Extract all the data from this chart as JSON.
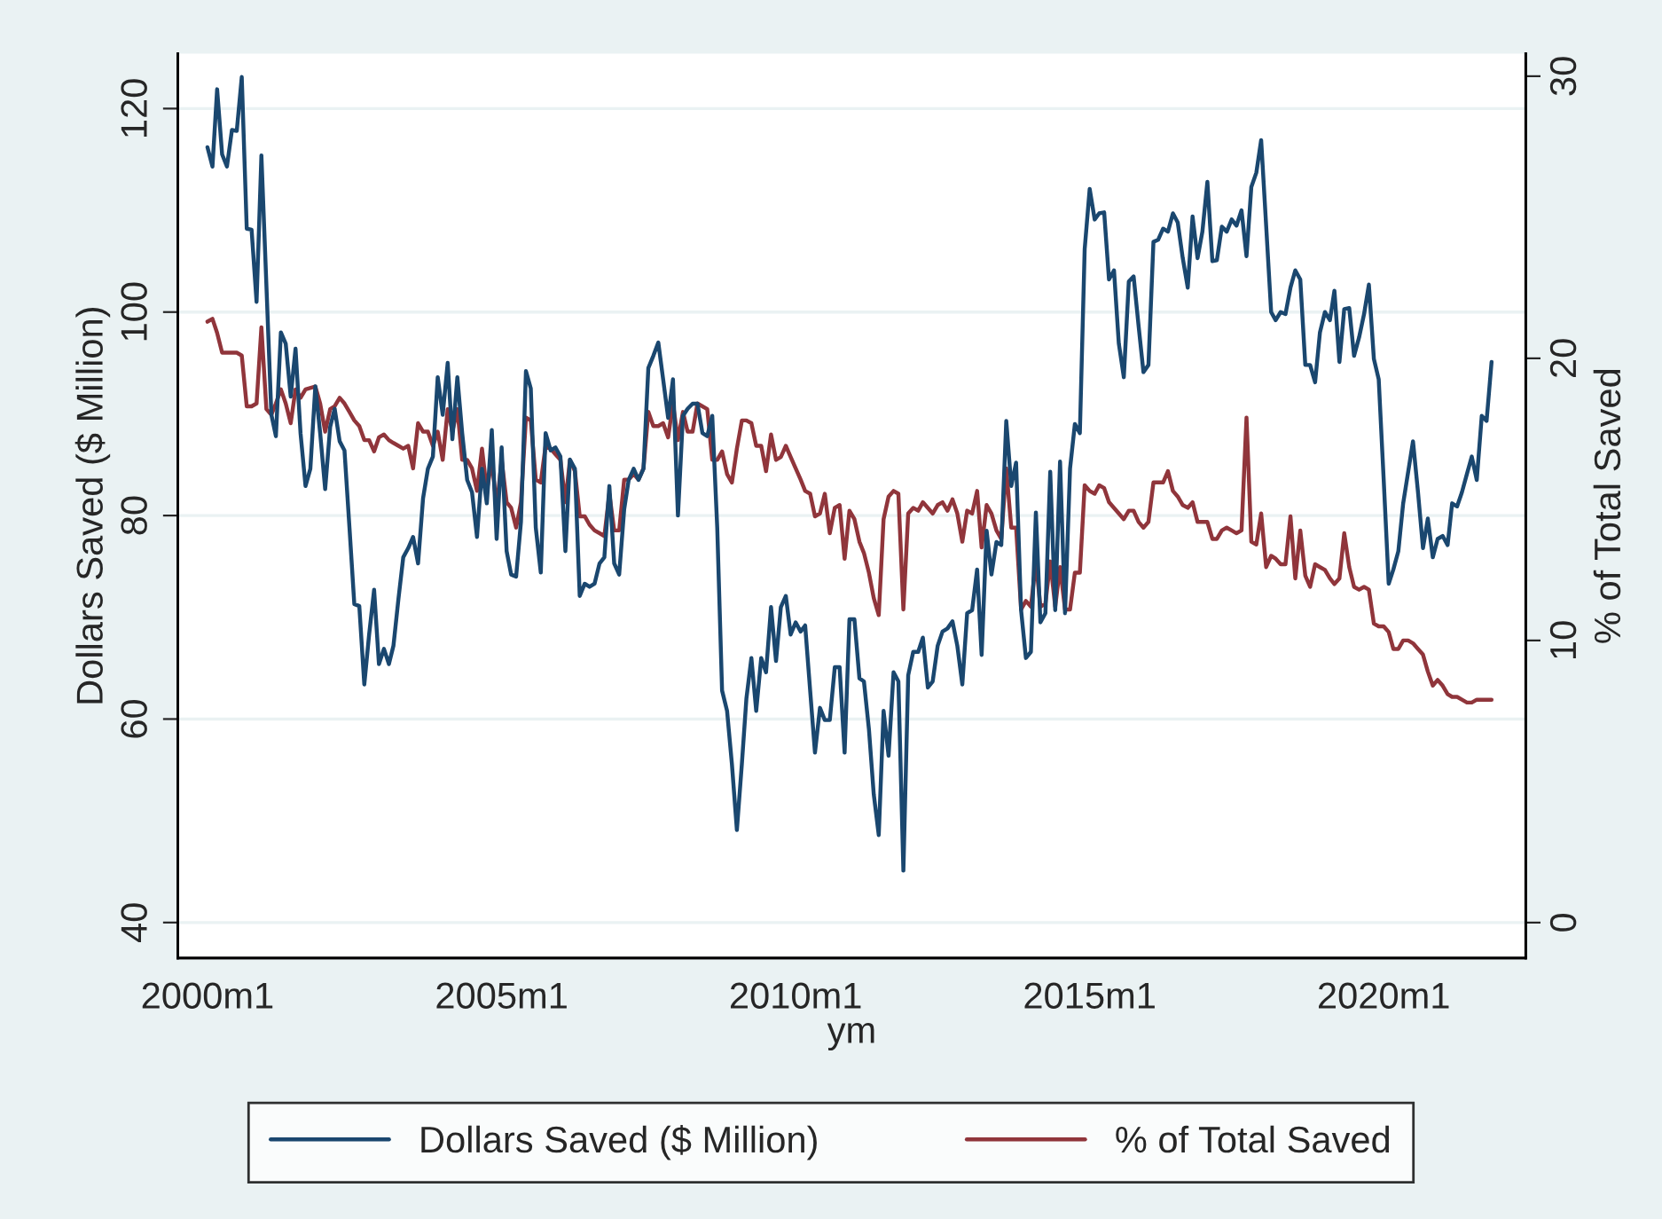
{
  "chart_data": {
    "type": "line",
    "xlabel": "ym",
    "ylabel": "Dollars Saved ($ Million)",
    "y2label": "% of Total Saved",
    "xlim": [
      "1999-07",
      "2022-06"
    ],
    "xticks": [
      {
        "value": "2000-01",
        "label": "2000m1"
      },
      {
        "value": "2005-01",
        "label": "2005m1"
      },
      {
        "value": "2010-01",
        "label": "2010m1"
      },
      {
        "value": "2015-01",
        "label": "2015m1"
      },
      {
        "value": "2020-01",
        "label": "2020m1"
      }
    ],
    "ylim": [
      36.5,
      125.4
    ],
    "yticks": [
      40,
      60,
      80,
      100,
      120
    ],
    "y2lim": [
      -1.26,
      30.8
    ],
    "y2ticks": [
      0,
      10,
      20,
      30
    ],
    "grid": "y",
    "legend": "bottom",
    "line_style": "solid",
    "marker": "none",
    "series": [
      {
        "name": "Dollars Saved ($ Million)",
        "color": "#1a476f",
        "x": [
          "2000-01",
          "2000-02",
          "2000-03",
          "2000-04",
          "2000-05",
          "2000-06",
          "2000-07",
          "2000-08",
          "2000-09",
          "2000-10",
          "2000-11",
          "2000-12",
          "2001-02",
          "2001-03",
          "2001-04",
          "2001-05",
          "2001-06",
          "2001-07",
          "2001-08",
          "2001-09",
          "2001-10",
          "2001-11",
          "2001-12",
          "2002-01",
          "2002-02",
          "2002-03",
          "2002-04",
          "2002-05",
          "2002-06",
          "2002-07",
          "2002-08",
          "2002-09",
          "2002-10",
          "2002-11",
          "2002-12",
          "2003-01",
          "2003-02",
          "2003-03",
          "2003-04",
          "2003-05",
          "2003-06",
          "2003-07",
          "2003-08",
          "2003-09",
          "2003-10",
          "2003-11",
          "2003-12",
          "2004-01",
          "2004-02",
          "2004-03",
          "2004-04",
          "2004-05",
          "2004-06",
          "2004-07",
          "2004-08",
          "2004-09",
          "2004-10",
          "2004-11",
          "2004-12",
          "2005-01",
          "2005-02",
          "2005-03",
          "2005-04",
          "2005-05",
          "2005-06",
          "2005-07",
          "2005-08",
          "2005-09",
          "2005-10",
          "2005-11",
          "2005-12",
          "2006-01",
          "2006-02",
          "2006-03",
          "2006-04",
          "2006-05",
          "2006-06",
          "2006-07",
          "2006-08",
          "2006-09",
          "2006-10",
          "2006-11",
          "2006-12",
          "2007-01",
          "2007-02",
          "2007-03",
          "2007-04",
          "2007-05",
          "2007-06",
          "2007-07",
          "2007-08",
          "2007-09",
          "2007-10",
          "2007-11",
          "2007-12",
          "2008-01",
          "2008-02",
          "2008-03",
          "2008-04",
          "2008-05",
          "2008-06",
          "2008-07",
          "2008-08",
          "2008-09",
          "2008-10",
          "2008-11",
          "2008-12",
          "2009-01",
          "2009-02",
          "2009-03",
          "2009-04",
          "2009-05",
          "2009-06",
          "2009-07",
          "2009-08",
          "2009-09",
          "2009-10",
          "2009-11",
          "2009-12",
          "2010-01",
          "2010-02",
          "2010-03",
          "2010-04",
          "2010-05",
          "2010-06",
          "2010-07",
          "2010-08",
          "2010-09",
          "2010-10",
          "2010-11",
          "2010-12",
          "2011-01",
          "2011-02",
          "2011-03",
          "2011-04",
          "2011-05",
          "2011-06",
          "2011-07",
          "2011-08",
          "2011-09",
          "2011-10",
          "2011-11",
          "2011-12",
          "2012-01",
          "2012-02",
          "2012-03",
          "2012-04",
          "2012-05",
          "2012-06",
          "2012-07",
          "2012-08",
          "2012-09",
          "2012-10",
          "2012-11",
          "2012-12",
          "2013-01",
          "2013-02",
          "2013-03",
          "2013-04",
          "2013-05",
          "2013-06",
          "2013-07",
          "2013-08",
          "2013-09",
          "2013-10",
          "2013-11",
          "2013-12",
          "2014-01",
          "2014-02",
          "2014-03",
          "2014-04",
          "2014-05",
          "2014-06",
          "2014-07",
          "2014-08",
          "2014-09",
          "2014-10",
          "2014-11",
          "2014-12",
          "2015-01",
          "2015-02",
          "2015-03",
          "2015-04",
          "2015-05",
          "2015-06",
          "2015-07",
          "2015-08",
          "2015-09",
          "2015-10",
          "2015-11",
          "2015-12",
          "2016-01",
          "2016-02",
          "2016-03",
          "2016-04",
          "2016-05",
          "2016-06",
          "2016-07",
          "2016-08",
          "2016-09",
          "2016-10",
          "2016-11",
          "2016-12",
          "2017-01",
          "2017-02",
          "2017-03",
          "2017-04",
          "2017-05",
          "2017-06",
          "2017-07",
          "2017-08",
          "2017-09",
          "2017-10",
          "2017-11",
          "2017-12",
          "2018-01",
          "2018-02",
          "2018-03",
          "2018-04",
          "2018-05",
          "2018-06",
          "2018-07",
          "2018-08",
          "2018-09",
          "2018-10",
          "2018-11",
          "2018-12",
          "2019-01",
          "2019-02",
          "2019-03",
          "2019-04",
          "2019-05",
          "2019-06",
          "2019-07",
          "2019-08",
          "2019-09",
          "2019-10",
          "2019-11",
          "2019-12",
          "2020-01",
          "2020-02",
          "2020-03",
          "2020-04",
          "2020-05",
          "2020-07",
          "2020-08",
          "2020-09",
          "2020-10",
          "2020-11",
          "2020-12",
          "2021-01",
          "2021-02",
          "2021-03",
          "2021-04",
          "2021-05",
          "2021-06",
          "2021-07",
          "2021-08",
          "2021-09",
          "2021-10",
          "2021-11"
        ],
        "values": [
          116.2,
          114.3,
          121.9,
          115.5,
          114.3,
          117.9,
          117.8,
          123.1,
          108.2,
          108.1,
          101,
          115.4,
          89.9,
          87.8,
          98,
          96.9,
          91.7,
          96.4,
          88.1,
          82.9,
          84.6,
          92.7,
          88.1,
          82.6,
          88.7,
          90.5,
          87.3,
          86.4,
          78.8,
          71.3,
          71.1,
          63.4,
          68.3,
          72.7,
          65.4,
          66.9,
          65.4,
          67.2,
          71.8,
          75.9,
          76.8,
          77.9,
          75.3,
          81.7,
          84.6,
          85.8,
          93.6,
          89.9,
          95,
          87.5,
          93.6,
          88.1,
          83.5,
          82.3,
          77.9,
          84.6,
          81.2,
          88.4,
          77.7,
          86.7,
          76.5,
          74.2,
          74,
          79.4,
          94.2,
          92.5,
          78.8,
          74.4,
          88.1,
          86.4,
          86.7,
          85.8,
          76.5,
          85.5,
          84.6,
          72.1,
          73.3,
          73,
          73.3,
          75.3,
          75.9,
          82.9,
          75.3,
          74.2,
          80.6,
          83.5,
          84.6,
          83.5,
          84.6,
          94.5,
          95.7,
          97,
          93.4,
          89.6,
          93.4,
          80,
          89.8,
          90.5,
          91,
          91,
          88.1,
          87.8,
          89.8,
          78.8,
          62.8,
          60.8,
          55.6,
          49.1,
          55.6,
          62,
          66,
          60.8,
          66,
          64.6,
          71,
          65.7,
          71,
          72.1,
          68.3,
          69.5,
          68.6,
          69.2,
          62.8,
          56.7,
          61.1,
          59.9,
          59.9,
          65.1,
          65.1,
          56.7,
          69.8,
          69.8,
          64,
          63.7,
          59,
          52.6,
          48.6,
          60.8,
          56.4,
          64.6,
          63.7,
          45.1,
          64.3,
          66.6,
          66.6,
          68,
          63.1,
          63.7,
          67.2,
          68.6,
          68.9,
          69.6,
          67.2,
          63.4,
          70.4,
          70.7,
          74.7,
          66.3,
          78.5,
          74.2,
          77.4,
          77.1,
          89.3,
          82.9,
          85.2,
          70.7,
          66,
          66.6,
          80.3,
          69.5,
          70.4,
          84.3,
          70.7,
          85.3,
          70.4,
          84.6,
          89,
          88.1,
          106.2,
          112.1,
          109.1,
          109.7,
          109.8,
          103.2,
          104.1,
          96.9,
          93.6,
          103,
          103.5,
          98.6,
          94.1,
          94.8,
          106.9,
          107.1,
          108.2,
          107.9,
          109.7,
          108.8,
          105.3,
          102.4,
          109.4,
          105.3,
          107.9,
          112.8,
          105,
          105.1,
          108.4,
          107.9,
          109.1,
          108.5,
          110,
          105.5,
          112.3,
          113.7,
          116.9,
          108.5,
          100,
          99.2,
          100,
          99.8,
          102.4,
          104.1,
          103.2,
          94.8,
          94.8,
          93.1,
          98,
          100,
          99.2,
          102.1,
          95.1,
          100.3,
          100.4,
          95.7,
          97.5,
          99.8,
          102.7,
          95.4,
          93.4,
          83.5,
          73.3,
          74.7,
          76.5,
          81.2,
          87.3,
          82.3,
          76.8,
          79.7,
          75.9,
          77.7,
          78,
          77.1,
          81.2,
          80.9,
          82.3,
          84.1,
          85.8,
          83.5,
          89.8,
          89.3,
          95.1
        ]
      },
      {
        "name": "% of Total Saved",
        "color": "#90353b",
        "axis": "y2",
        "x": [
          "2000-01",
          "2000-02",
          "2000-03",
          "2000-04",
          "2000-05",
          "2000-07",
          "2000-08",
          "2000-09",
          "2000-10",
          "2000-11",
          "2000-12",
          "2001-01",
          "2001-02",
          "2001-03",
          "2001-04",
          "2001-05",
          "2001-06",
          "2001-07",
          "2001-08",
          "2001-09",
          "2001-11",
          "2001-12",
          "2002-01",
          "2002-02",
          "2002-03",
          "2002-04",
          "2002-05",
          "2002-06",
          "2002-07",
          "2002-08",
          "2002-09",
          "2002-10",
          "2002-11",
          "2002-12",
          "2003-01",
          "2003-02",
          "2003-03",
          "2003-04",
          "2003-05",
          "2003-06",
          "2003-07",
          "2003-08",
          "2003-09",
          "2003-10",
          "2003-11",
          "2003-12",
          "2004-01",
          "2004-02",
          "2004-03",
          "2004-04",
          "2004-05",
          "2004-06",
          "2004-07",
          "2004-08",
          "2004-09",
          "2004-10",
          "2004-11",
          "2004-12",
          "2005-01",
          "2005-02",
          "2005-03",
          "2005-04",
          "2005-05",
          "2005-06",
          "2005-07",
          "2005-08",
          "2005-09",
          "2005-10",
          "2005-11",
          "2005-12",
          "2006-01",
          "2006-02",
          "2006-03",
          "2006-04",
          "2006-05",
          "2006-06",
          "2006-07",
          "2006-08",
          "2006-09",
          "2006-10",
          "2006-11",
          "2006-12",
          "2007-01",
          "2007-02",
          "2007-03",
          "2007-04",
          "2007-05",
          "2007-06",
          "2007-07",
          "2007-08",
          "2007-09",
          "2007-10",
          "2007-11",
          "2007-12",
          "2008-01",
          "2008-02",
          "2008-03",
          "2008-04",
          "2008-05",
          "2008-06",
          "2008-07",
          "2008-08",
          "2008-09",
          "2008-10",
          "2008-11",
          "2008-12",
          "2009-01",
          "2009-02",
          "2009-03",
          "2009-04",
          "2009-05",
          "2009-06",
          "2009-07",
          "2009-08",
          "2009-09",
          "2009-10",
          "2009-11",
          "2009-12",
          "2010-01",
          "2010-02",
          "2010-03",
          "2010-04",
          "2010-05",
          "2010-06",
          "2010-07",
          "2010-08",
          "2010-09",
          "2010-10",
          "2010-11",
          "2010-12",
          "2011-01",
          "2011-02",
          "2011-03",
          "2011-04",
          "2011-05",
          "2011-06",
          "2011-07",
          "2011-08",
          "2011-09",
          "2011-10",
          "2011-11",
          "2011-12",
          "2012-01",
          "2012-02",
          "2012-03",
          "2012-04",
          "2012-05",
          "2012-06",
          "2012-07",
          "2012-08",
          "2012-09",
          "2012-10",
          "2012-11",
          "2012-12",
          "2013-01",
          "2013-02",
          "2013-03",
          "2013-04",
          "2013-05",
          "2013-06",
          "2013-07",
          "2013-08",
          "2013-09",
          "2013-10",
          "2013-11",
          "2013-12",
          "2014-01",
          "2014-02",
          "2014-03",
          "2014-04",
          "2014-05",
          "2014-06",
          "2014-07",
          "2014-08",
          "2014-09",
          "2014-10",
          "2014-11",
          "2014-12",
          "2015-01",
          "2015-02",
          "2015-03",
          "2015-04",
          "2015-05",
          "2015-06",
          "2015-07",
          "2015-08",
          "2015-09",
          "2015-10",
          "2015-11",
          "2015-12",
          "2016-01",
          "2016-02",
          "2016-03",
          "2016-04",
          "2016-05",
          "2016-06",
          "2016-07",
          "2016-08",
          "2016-09",
          "2016-10",
          "2016-11",
          "2016-12",
          "2017-01",
          "2017-02",
          "2017-03",
          "2017-04",
          "2017-05",
          "2017-06",
          "2017-07",
          "2017-08",
          "2017-09",
          "2017-10",
          "2017-11",
          "2017-12",
          "2018-01",
          "2018-02",
          "2018-03",
          "2018-04",
          "2018-05",
          "2018-06",
          "2018-07",
          "2018-08",
          "2018-09",
          "2018-10",
          "2018-11",
          "2018-12",
          "2019-01",
          "2019-02",
          "2019-03",
          "2019-04",
          "2019-05",
          "2019-06",
          "2019-07",
          "2019-08",
          "2019-09",
          "2019-10",
          "2019-11",
          "2019-12",
          "2020-01",
          "2020-02",
          "2020-03",
          "2020-04",
          "2020-05",
          "2020-06",
          "2020-07",
          "2020-08",
          "2020-09",
          "2020-10",
          "2020-11",
          "2020-12",
          "2021-01",
          "2021-02",
          "2021-03",
          "2021-04",
          "2021-05",
          "2021-06",
          "2021-07",
          "2021-08",
          "2021-09",
          "2021-11"
        ],
        "values": [
          21.3,
          21.4,
          20.9,
          20.2,
          20.2,
          20.2,
          20.1,
          18.3,
          18.3,
          18.4,
          21.1,
          18.2,
          18,
          18.4,
          18.9,
          18.4,
          17.7,
          18.9,
          18.6,
          18.9,
          19,
          18.4,
          17.4,
          18.2,
          18.3,
          18.6,
          18.4,
          18.1,
          17.8,
          17.6,
          17.1,
          17.1,
          16.7,
          17.2,
          17.3,
          17.1,
          17,
          16.9,
          16.8,
          16.9,
          16.1,
          17.7,
          17.4,
          17.4,
          16.9,
          17.4,
          16.4,
          18.2,
          17.4,
          18.2,
          16.4,
          16.4,
          16.1,
          15.3,
          16.8,
          15.3,
          16.4,
          14.7,
          16.4,
          14.9,
          14.7,
          14,
          14.9,
          17.9,
          17.8,
          15.7,
          15.6,
          16.9,
          16.8,
          16.6,
          16.4,
          14.9,
          16.4,
          16,
          14.4,
          14.4,
          14.1,
          13.9,
          13.8,
          13.7,
          15.2,
          13.9,
          13.9,
          15.7,
          15.7,
          15.9,
          15.7,
          16.1,
          18.1,
          17.6,
          17.6,
          17.7,
          17.2,
          18.4,
          17.1,
          18.1,
          17.4,
          17.4,
          18.4,
          18.3,
          18.2,
          16.4,
          16.4,
          16.7,
          15.9,
          15.6,
          16.8,
          17.8,
          17.8,
          17.7,
          16.9,
          16.9,
          16,
          17.3,
          16.4,
          16.5,
          16.9,
          16.5,
          16.1,
          15.7,
          15.3,
          15.2,
          14.4,
          14.5,
          15.2,
          13.8,
          14.7,
          14.8,
          12.9,
          14.6,
          14.3,
          13.5,
          13.1,
          12.4,
          11.5,
          10.9,
          14.3,
          15.1,
          15.3,
          15.2,
          11.1,
          14.5,
          14.7,
          14.6,
          14.9,
          14.7,
          14.5,
          14.8,
          14.9,
          14.6,
          15,
          14.5,
          13.5,
          14.6,
          14.5,
          15.3,
          13.3,
          14.8,
          14.5,
          13.9,
          13.6,
          16.1,
          14,
          14,
          11.1,
          11.4,
          11.2,
          12.8,
          11.2,
          11.3,
          12.8,
          11.2,
          12.6,
          11.1,
          11.1,
          12.4,
          12.4,
          15.5,
          15.3,
          15.2,
          15.5,
          15.4,
          14.9,
          14.7,
          14.5,
          14.3,
          14.6,
          14.6,
          14.2,
          14,
          14.2,
          15.6,
          15.6,
          15.6,
          16,
          15.3,
          15.1,
          14.8,
          14.7,
          14.9,
          14.2,
          14.2,
          14.2,
          13.6,
          13.6,
          13.9,
          14,
          13.9,
          13.8,
          13.9,
          17.9,
          13.5,
          13.4,
          14.5,
          12.6,
          13,
          12.9,
          12.7,
          12.7,
          14.4,
          12.2,
          13.9,
          12.3,
          11.9,
          12.7,
          12.6,
          12.5,
          12.2,
          12,
          12.2,
          13.8,
          12.6,
          11.9,
          11.8,
          11.9,
          11.8,
          10.6,
          10.5,
          10.5,
          10.3,
          9.7,
          9.7,
          10,
          10,
          9.9,
          9.7,
          9.5,
          8.9,
          8.4,
          8.6,
          8.4,
          8.1,
          8,
          8,
          7.9,
          7.8,
          7.8,
          7.9,
          7.9,
          7.9
        ]
      }
    ]
  }
}
